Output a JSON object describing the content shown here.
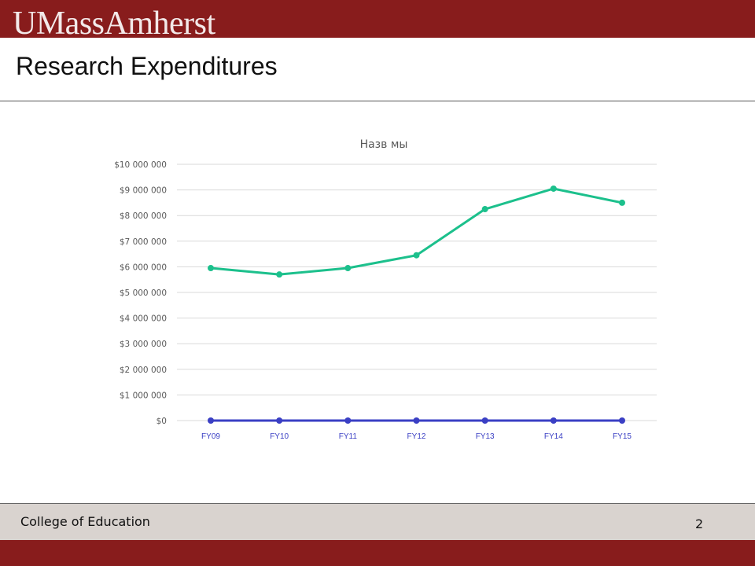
{
  "header": {
    "logo_text": "UMassAmherst",
    "title": "Research Expenditures"
  },
  "footer": {
    "college": "College of Education",
    "page_number": "2"
  },
  "chart_data": {
    "type": "line",
    "title": "Назв      мы",
    "categories": [
      "FY09",
      "FY10",
      "FY11",
      "FY12",
      "FY13",
      "FY14",
      "FY15"
    ],
    "y_ticks": [
      "$0",
      "$1 000 000",
      "$2 000 000",
      "$3 000 000",
      "$4 000 000",
      "$5 000 000",
      "$6 000 000",
      "$7 000 000",
      "$8 000 000",
      "$9 000 000",
      "$10 000 000"
    ],
    "ylim": [
      0,
      10000000
    ],
    "grid": true,
    "series": [
      {
        "color": "#1cc08c",
        "values": [
          5950000,
          5700000,
          5950000,
          6450000,
          8250000,
          9050000,
          8500000
        ]
      },
      {
        "color": "#3a3fc4",
        "values": [
          0,
          0,
          0,
          0,
          0,
          0,
          0
        ]
      }
    ]
  }
}
